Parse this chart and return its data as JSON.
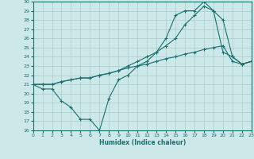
{
  "bg_color": "#cce8e8",
  "line_color": "#1a7070",
  "grid_color": "#aacccc",
  "xlabel": "Humidex (Indice chaleur)",
  "ylim": [
    16,
    30
  ],
  "xlim": [
    0,
    23
  ],
  "yticks": [
    16,
    17,
    18,
    19,
    20,
    21,
    22,
    23,
    24,
    25,
    26,
    27,
    28,
    29,
    30
  ],
  "xticks": [
    0,
    1,
    2,
    3,
    4,
    5,
    6,
    7,
    8,
    9,
    10,
    11,
    12,
    13,
    14,
    15,
    16,
    17,
    18,
    19,
    20,
    21,
    22,
    23
  ],
  "series": [
    [
      21.0,
      20.5,
      20.5,
      19.2,
      18.5,
      17.2,
      17.2,
      16.0,
      19.5,
      21.5,
      22.0,
      23.0,
      23.5,
      24.5,
      26.0,
      28.5,
      29.0,
      29.0,
      30.0,
      29.0,
      24.5,
      24.0,
      23.2,
      23.5
    ],
    [
      21.0,
      21.0,
      21.0,
      21.3,
      21.5,
      21.7,
      21.7,
      22.0,
      22.2,
      22.5,
      22.8,
      23.0,
      23.2,
      23.5,
      23.8,
      24.0,
      24.3,
      24.5,
      24.8,
      25.0,
      25.2,
      23.5,
      23.2,
      23.5
    ],
    [
      21.0,
      21.0,
      21.0,
      21.3,
      21.5,
      21.7,
      21.7,
      22.0,
      22.2,
      22.5,
      23.0,
      23.5,
      24.0,
      24.5,
      25.2,
      26.0,
      27.5,
      28.5,
      29.5,
      29.0,
      28.0,
      24.0,
      23.2,
      23.5
    ]
  ]
}
